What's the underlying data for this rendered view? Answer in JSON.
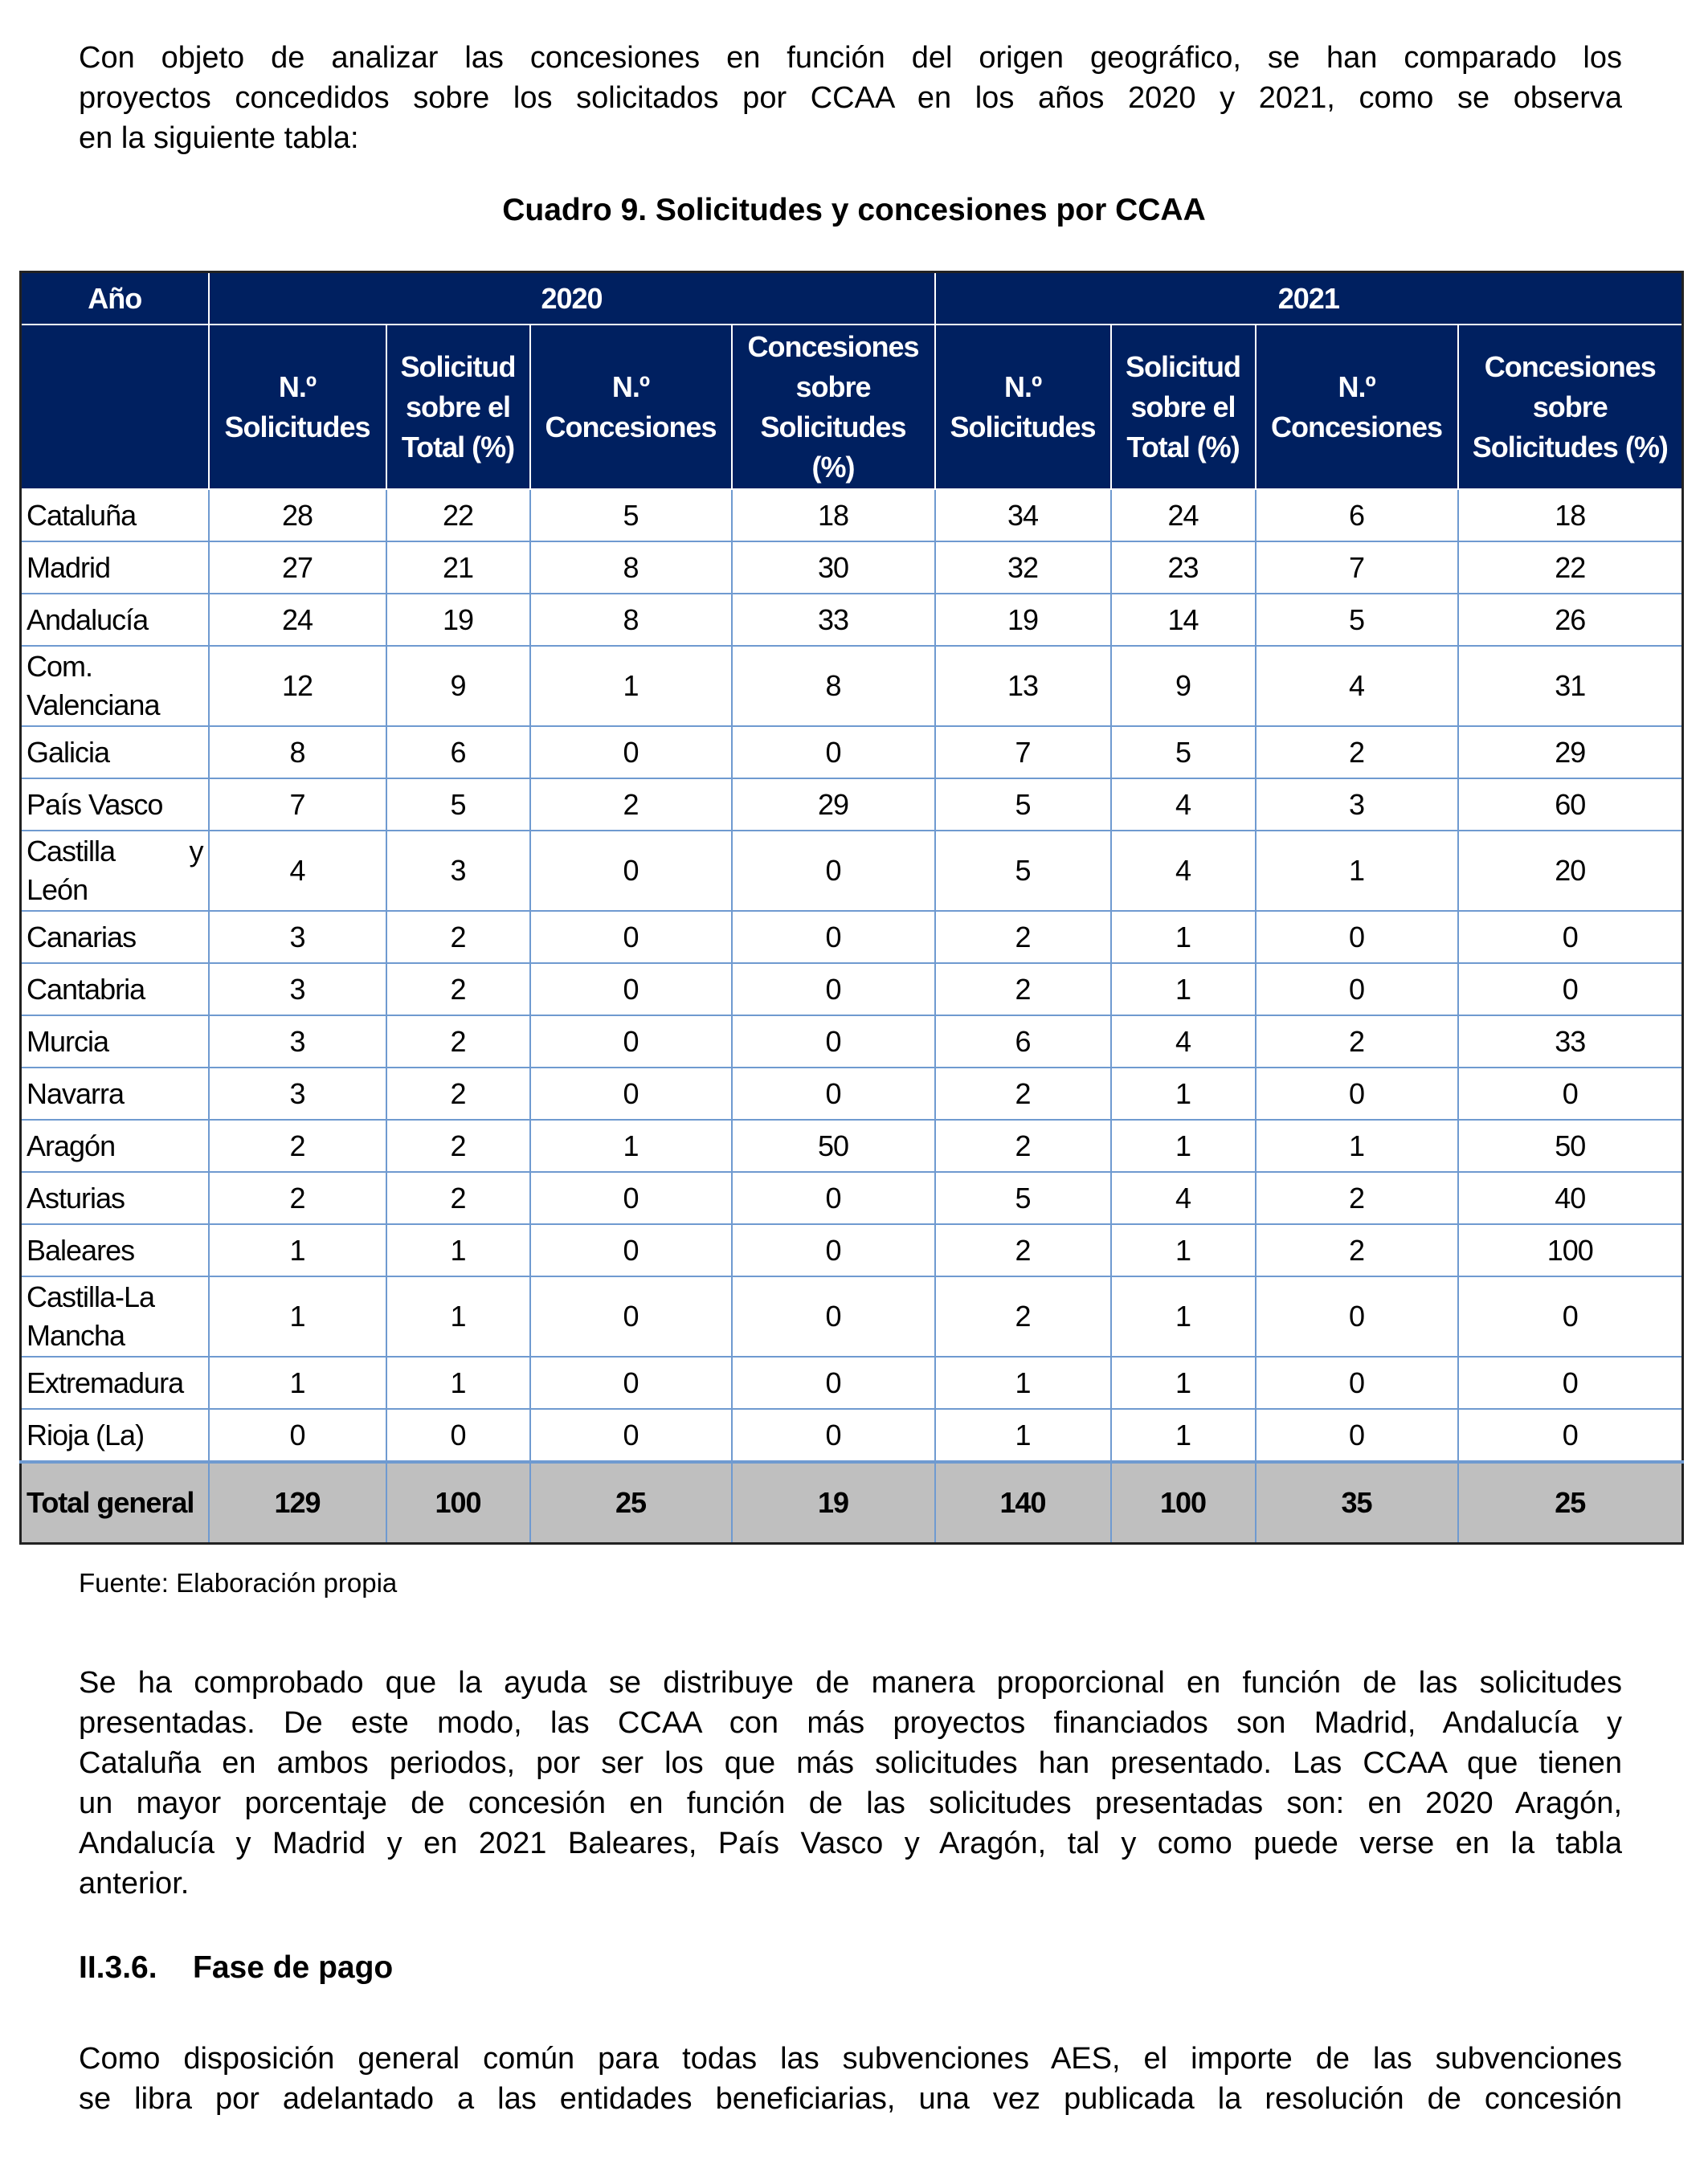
{
  "intro_lines": [
    "Con objeto de analizar las concesiones en función del origen geográfico, se han comparado los",
    "proyectos concedidos sobre los solicitados por CCAA en los años 2020 y 2021, como se observa",
    "en la siguiente tabla:"
  ],
  "table_title": "Cuadro 9. Solicitudes y concesiones por CCAA",
  "table": {
    "year_label": "Año",
    "years": [
      "2020",
      "2021"
    ],
    "columns": [
      "N.º Solicitudes",
      "Solicitud sobre el Total (%)",
      "N.º Concesiones",
      "Concesiones sobre Solicitudes (%)"
    ],
    "rows": [
      {
        "name": "Cataluña",
        "values": [
          "28",
          "22",
          "5",
          "18",
          "34",
          "24",
          "6",
          "18"
        ]
      },
      {
        "name": "Madrid",
        "values": [
          "27",
          "21",
          "8",
          "30",
          "32",
          "23",
          "7",
          "22"
        ]
      },
      {
        "name": "Andalucía",
        "values": [
          "24",
          "19",
          "8",
          "33",
          "19",
          "14",
          "5",
          "26"
        ]
      },
      {
        "name": "Com. Valenciana",
        "values": [
          "12",
          "9",
          "1",
          "8",
          "13",
          "9",
          "4",
          "31"
        ]
      },
      {
        "name": "Galicia",
        "values": [
          "8",
          "6",
          "0",
          "0",
          "7",
          "5",
          "2",
          "29"
        ]
      },
      {
        "name": "País Vasco",
        "values": [
          "7",
          "5",
          "2",
          "29",
          "5",
          "4",
          "3",
          "60"
        ]
      },
      {
        "name": "Castilla y León",
        "values": [
          "4",
          "3",
          "0",
          "0",
          "5",
          "4",
          "1",
          "20"
        ]
      },
      {
        "name": "Canarias",
        "values": [
          "3",
          "2",
          "0",
          "0",
          "2",
          "1",
          "0",
          "0"
        ]
      },
      {
        "name": "Cantabria",
        "values": [
          "3",
          "2",
          "0",
          "0",
          "2",
          "1",
          "0",
          "0"
        ]
      },
      {
        "name": "Murcia",
        "values": [
          "3",
          "2",
          "0",
          "0",
          "6",
          "4",
          "2",
          "33"
        ]
      },
      {
        "name": "Navarra",
        "values": [
          "3",
          "2",
          "0",
          "0",
          "2",
          "1",
          "0",
          "0"
        ]
      },
      {
        "name": "Aragón",
        "values": [
          "2",
          "2",
          "1",
          "50",
          "2",
          "1",
          "1",
          "50"
        ]
      },
      {
        "name": "Asturias",
        "values": [
          "2",
          "2",
          "0",
          "0",
          "5",
          "4",
          "2",
          "40"
        ]
      },
      {
        "name": "Baleares",
        "values": [
          "1",
          "1",
          "0",
          "0",
          "2",
          "1",
          "2",
          "100"
        ]
      },
      {
        "name": "Castilla-La Mancha",
        "values": [
          "1",
          "1",
          "0",
          "0",
          "2",
          "1",
          "0",
          "0"
        ]
      },
      {
        "name": "Extremadura",
        "values": [
          "1",
          "1",
          "0",
          "0",
          "1",
          "1",
          "0",
          "0"
        ]
      },
      {
        "name": "Rioja (La)",
        "values": [
          "0",
          "0",
          "0",
          "0",
          "1",
          "1",
          "0",
          "0"
        ]
      }
    ],
    "total": {
      "name": "Total general",
      "values": [
        "129",
        "100",
        "25",
        "19",
        "140",
        "100",
        "35",
        "25"
      ]
    },
    "header_color": "#002060",
    "total_color": "#bfbfbf"
  },
  "source": "Fuente: Elaboración propia",
  "para2_lines": [
    "Se ha comprobado que la ayuda se distribuye de manera proporcional en función de las solicitudes",
    "presentadas. De este modo, las CCAA con más proyectos financiados son Madrid, Andalucía y",
    "Cataluña en ambos periodos, por ser los que más solicitudes han presentado. Las CCAA que tienen",
    "un mayor porcentaje de concesión en función de las solicitudes presentadas son: en 2020 Aragón,",
    "Andalucía y Madrid y en 2021 Baleares, País Vasco y Aragón, tal y como puede verse en la tabla",
    "anterior."
  ],
  "section": {
    "number": "II.3.6.",
    "title": "Fase de pago"
  },
  "para3_lines": [
    "Como disposición general común para todas las subvenciones AES, el importe de las subvenciones",
    "se libra por adelantado a las entidades beneficiarias, una vez publicada la resolución de concesión"
  ]
}
